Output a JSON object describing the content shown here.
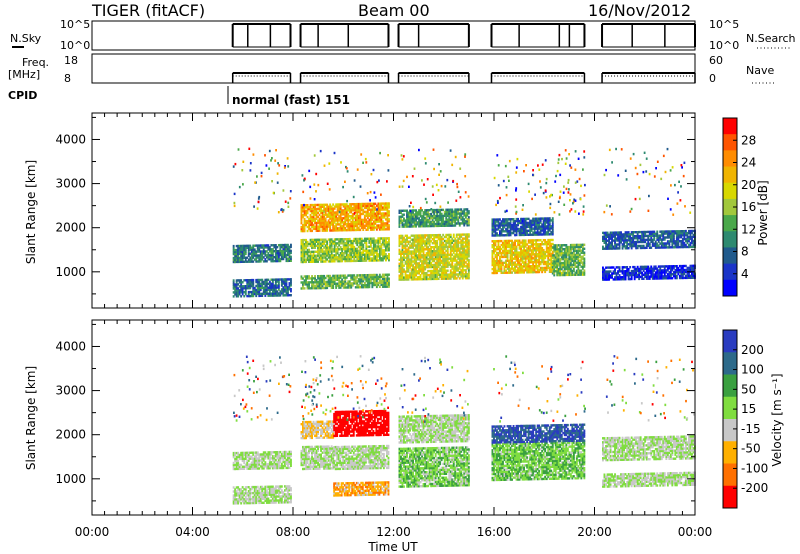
{
  "header": {
    "radar": "TIGER (fitACF)",
    "beam": "Beam 00",
    "date": "16/Nov/2012"
  },
  "top_panels": {
    "nsky_label": "N.Sky",
    "nsky_ticks": [
      "10^5",
      "10^0"
    ],
    "nsearch_label": "N.Search",
    "nsearch_ticks": [
      "10^5",
      "10^0"
    ],
    "freq_label_1": "Freq.",
    "freq_label_2": "[MHz]",
    "freq_ticks": [
      "18",
      "8"
    ],
    "nave_label": "Nave",
    "nave_ticks": [
      "60",
      "0"
    ],
    "cpid_label": "CPID",
    "cpid_text": "normal (fast) 151"
  },
  "power_colorbar": {
    "label": "Power [dB]",
    "ticks": [
      "28",
      "24",
      "20",
      "16",
      "12",
      "8",
      "4"
    ],
    "colors": [
      "#ff0000",
      "#ff5500",
      "#ff8c00",
      "#f0b400",
      "#d8d800",
      "#a2c83c",
      "#4aa84a",
      "#2e8a70",
      "#205a8c",
      "#1a34c8",
      "#0000ff"
    ]
  },
  "velocity_colorbar": {
    "label": "Velocity [m s⁻¹]",
    "ticks": [
      "200",
      "100",
      "50",
      "15",
      "-15",
      "-50",
      "-100",
      "-200"
    ],
    "colors": [
      "#2a3cc0",
      "#2d6a8a",
      "#3aa040",
      "#80dd40",
      "#c8c8c8",
      "#ffb000",
      "#ff7000",
      "#ff0000"
    ]
  },
  "axes": {
    "ylabel": "Slant Range [km]",
    "xlabel": "Time UT",
    "yticks": [
      "4000",
      "3000",
      "2000",
      "1000"
    ],
    "xticks": [
      "00:00",
      "04:00",
      "08:00",
      "12:00",
      "16:00",
      "20:00",
      "00:00"
    ]
  },
  "chart_data": [
    {
      "type": "heatmap",
      "title": "Power",
      "xlabel": "Time UT",
      "ylabel": "Slant Range [km]",
      "xlim": [
        0,
        24
      ],
      "ylim": [
        180,
        4600
      ],
      "colorbar_label": "Power [dB]",
      "color_range": [
        2,
        30
      ],
      "segments": [
        {
          "t0": 5.6,
          "t1": 7.9,
          "regions": [
            {
              "r0": 1200,
              "r1": 1600,
              "v": 10
            },
            {
              "r0": 420,
              "r1": 800,
              "v": 9
            }
          ]
        },
        {
          "t0": 8.3,
          "t1": 11.8,
          "regions": [
            {
              "r0": 1900,
              "r1": 2500,
              "v": 22
            },
            {
              "r0": 1200,
              "r1": 1700,
              "v": 16
            },
            {
              "r0": 600,
              "r1": 900,
              "v": 14
            }
          ]
        },
        {
          "t0": 12.2,
          "t1": 15.0,
          "regions": [
            {
              "r0": 800,
              "r1": 1800,
              "v": 18
            },
            {
              "r0": 2000,
              "r1": 2400,
              "v": 12
            }
          ]
        },
        {
          "t0": 15.9,
          "t1": 18.3,
          "regions": [
            {
              "r0": 950,
              "r1": 1700,
              "v": 20
            },
            {
              "r0": 1800,
              "r1": 2200,
              "v": 8
            }
          ]
        },
        {
          "t0": 18.3,
          "t1": 19.6,
          "regions": [
            {
              "r0": 900,
              "r1": 1600,
              "v": 14
            }
          ]
        },
        {
          "t0": 20.3,
          "t1": 24.0,
          "regions": [
            {
              "r0": 1500,
              "r1": 1900,
              "v": 8
            },
            {
              "r0": 800,
              "r1": 1100,
              "v": 5
            }
          ]
        }
      ]
    },
    {
      "type": "heatmap",
      "title": "Velocity",
      "xlabel": "Time UT",
      "ylabel": "Slant Range [km]",
      "xlim": [
        0,
        24
      ],
      "ylim": [
        180,
        4600
      ],
      "colorbar_label": "Velocity [m s⁻¹]",
      "color_range": [
        -200,
        200
      ],
      "segments": [
        {
          "t0": 5.6,
          "t1": 7.9,
          "regions": [
            {
              "r0": 1200,
              "r1": 1600,
              "v": 0
            },
            {
              "r0": 420,
              "r1": 800,
              "v": 0
            }
          ]
        },
        {
          "t0": 8.3,
          "t1": 9.6,
          "regions": [
            {
              "r0": 1200,
              "r1": 1700,
              "v": 0
            },
            {
              "r0": 1900,
              "r1": 2300,
              "v": -50
            }
          ]
        },
        {
          "t0": 9.6,
          "t1": 11.8,
          "regions": [
            {
              "r0": 1950,
              "r1": 2500,
              "v": -200
            },
            {
              "r0": 1200,
              "r1": 1700,
              "v": 0
            },
            {
              "r0": 600,
              "r1": 900,
              "v": -80
            }
          ]
        },
        {
          "t0": 12.2,
          "t1": 15.0,
          "regions": [
            {
              "r0": 800,
              "r1": 1700,
              "v": 30
            },
            {
              "r0": 1800,
              "r1": 2400,
              "v": 0
            }
          ]
        },
        {
          "t0": 15.9,
          "t1": 19.6,
          "regions": [
            {
              "r0": 950,
              "r1": 1800,
              "v": 40
            },
            {
              "r0": 1800,
              "r1": 2200,
              "v": 150
            }
          ]
        },
        {
          "t0": 20.3,
          "t1": 24.0,
          "regions": [
            {
              "r0": 1400,
              "r1": 1900,
              "v": 0
            },
            {
              "r0": 800,
              "r1": 1100,
              "v": 0
            }
          ]
        }
      ]
    }
  ]
}
